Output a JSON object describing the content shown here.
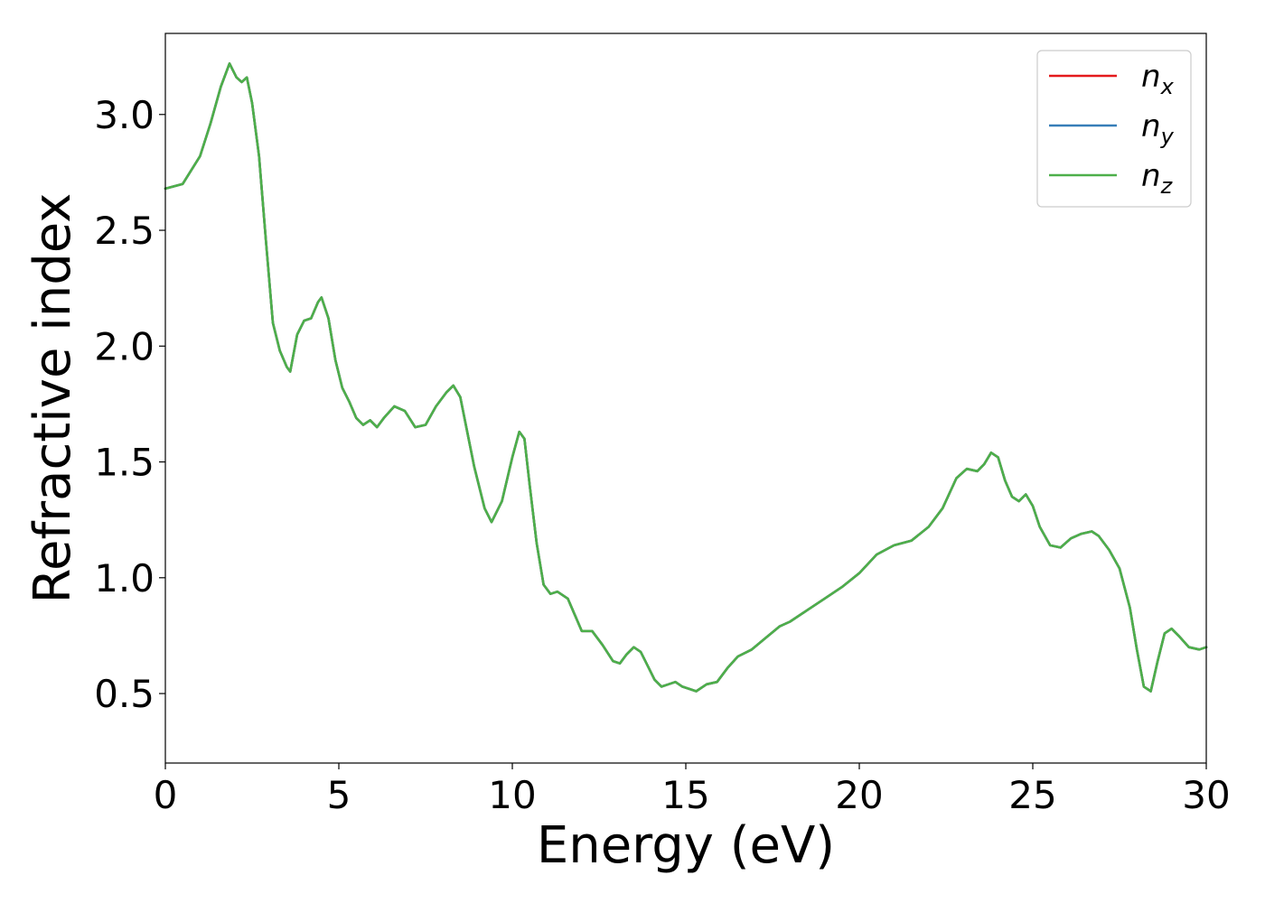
{
  "chart_data": {
    "type": "line",
    "title": "",
    "xlabel": "Energy (eV)",
    "ylabel": "Refractive index",
    "xlim": [
      0,
      30
    ],
    "ylim": [
      0.2,
      3.35
    ],
    "xticks": [
      "0",
      "5",
      "10",
      "15",
      "20",
      "25",
      "30"
    ],
    "yticks": [
      "0.5",
      "1.0",
      "1.5",
      "2.0",
      "2.5",
      "3.0"
    ],
    "grid": false,
    "legend_position": "top-right",
    "series": [
      {
        "name": "n",
        "subscript": "x",
        "color": "#e41a1c",
        "x": [
          0,
          0.5,
          1.0,
          1.3,
          1.6,
          1.85,
          2.05,
          2.2,
          2.35,
          2.5,
          2.7,
          2.9,
          3.1,
          3.3,
          3.5,
          3.6,
          3.8,
          4.0,
          4.2,
          4.4,
          4.5,
          4.7,
          4.9,
          5.1,
          5.3,
          5.5,
          5.7,
          5.9,
          6.1,
          6.3,
          6.6,
          6.9,
          7.2,
          7.5,
          7.8,
          8.1,
          8.3,
          8.5,
          8.7,
          8.9,
          9.2,
          9.4,
          9.7,
          10.0,
          10.2,
          10.35,
          10.5,
          10.7,
          10.9,
          11.1,
          11.3,
          11.6,
          11.8,
          12.0,
          12.3,
          12.6,
          12.9,
          13.1,
          13.3,
          13.5,
          13.7,
          13.9,
          14.1,
          14.3,
          14.5,
          14.7,
          14.9,
          15.1,
          15.3,
          15.6,
          15.9,
          16.2,
          16.5,
          16.9,
          17.3,
          17.7,
          18.0,
          18.5,
          19.0,
          19.5,
          20.0,
          20.5,
          21.0,
          21.5,
          22.0,
          22.4,
          22.8,
          23.1,
          23.4,
          23.6,
          23.8,
          24.0,
          24.2,
          24.4,
          24.6,
          24.8,
          25.0,
          25.2,
          25.5,
          25.8,
          26.1,
          26.4,
          26.7,
          26.9,
          27.2,
          27.5,
          27.8,
          28.0,
          28.2,
          28.4,
          28.6,
          28.8,
          29.0,
          29.2,
          29.5,
          29.8,
          30.0
        ],
        "y": [
          2.68,
          2.7,
          2.82,
          2.96,
          3.12,
          3.22,
          3.16,
          3.14,
          3.16,
          3.05,
          2.82,
          2.45,
          2.1,
          1.98,
          1.91,
          1.89,
          2.05,
          2.11,
          2.12,
          2.19,
          2.21,
          2.12,
          1.94,
          1.82,
          1.76,
          1.69,
          1.66,
          1.68,
          1.65,
          1.69,
          1.74,
          1.72,
          1.65,
          1.66,
          1.74,
          1.8,
          1.83,
          1.78,
          1.63,
          1.48,
          1.3,
          1.24,
          1.33,
          1.52,
          1.63,
          1.6,
          1.4,
          1.15,
          0.97,
          0.93,
          0.94,
          0.91,
          0.84,
          0.77,
          0.77,
          0.71,
          0.64,
          0.63,
          0.67,
          0.7,
          0.68,
          0.62,
          0.56,
          0.53,
          0.54,
          0.55,
          0.53,
          0.52,
          0.51,
          0.54,
          0.55,
          0.61,
          0.66,
          0.69,
          0.74,
          0.79,
          0.81,
          0.86,
          0.91,
          0.96,
          1.02,
          1.1,
          1.14,
          1.16,
          1.22,
          1.3,
          1.43,
          1.47,
          1.46,
          1.49,
          1.54,
          1.52,
          1.42,
          1.35,
          1.33,
          1.36,
          1.31,
          1.22,
          1.14,
          1.13,
          1.17,
          1.19,
          1.2,
          1.18,
          1.12,
          1.04,
          0.87,
          0.69,
          0.53,
          0.51,
          0.64,
          0.76,
          0.78,
          0.75,
          0.7,
          0.69,
          0.7
        ]
      },
      {
        "name": "n",
        "subscript": "y",
        "color": "#377eb8",
        "x": [
          0,
          0.5,
          1.0,
          1.3,
          1.6,
          1.85,
          2.05,
          2.2,
          2.35,
          2.5,
          2.7,
          2.9,
          3.1,
          3.3,
          3.5,
          3.6,
          3.8,
          4.0,
          4.2,
          4.4,
          4.5,
          4.7,
          4.9,
          5.1,
          5.3,
          5.5,
          5.7,
          5.9,
          6.1,
          6.3,
          6.6,
          6.9,
          7.2,
          7.5,
          7.8,
          8.1,
          8.3,
          8.5,
          8.7,
          8.9,
          9.2,
          9.4,
          9.7,
          10.0,
          10.2,
          10.35,
          10.5,
          10.7,
          10.9,
          11.1,
          11.3,
          11.6,
          11.8,
          12.0,
          12.3,
          12.6,
          12.9,
          13.1,
          13.3,
          13.5,
          13.7,
          13.9,
          14.1,
          14.3,
          14.5,
          14.7,
          14.9,
          15.1,
          15.3,
          15.6,
          15.9,
          16.2,
          16.5,
          16.9,
          17.3,
          17.7,
          18.0,
          18.5,
          19.0,
          19.5,
          20.0,
          20.5,
          21.0,
          21.5,
          22.0,
          22.4,
          22.8,
          23.1,
          23.4,
          23.6,
          23.8,
          24.0,
          24.2,
          24.4,
          24.6,
          24.8,
          25.0,
          25.2,
          25.5,
          25.8,
          26.1,
          26.4,
          26.7,
          26.9,
          27.2,
          27.5,
          27.8,
          28.0,
          28.2,
          28.4,
          28.6,
          28.8,
          29.0,
          29.2,
          29.5,
          29.8,
          30.0
        ],
        "y": [
          2.68,
          2.7,
          2.82,
          2.96,
          3.12,
          3.22,
          3.16,
          3.14,
          3.16,
          3.05,
          2.82,
          2.45,
          2.1,
          1.98,
          1.91,
          1.89,
          2.05,
          2.11,
          2.12,
          2.19,
          2.21,
          2.12,
          1.94,
          1.82,
          1.76,
          1.69,
          1.66,
          1.68,
          1.65,
          1.69,
          1.74,
          1.72,
          1.65,
          1.66,
          1.74,
          1.8,
          1.83,
          1.78,
          1.63,
          1.48,
          1.3,
          1.24,
          1.33,
          1.52,
          1.63,
          1.6,
          1.4,
          1.15,
          0.97,
          0.93,
          0.94,
          0.91,
          0.84,
          0.77,
          0.77,
          0.71,
          0.64,
          0.63,
          0.67,
          0.7,
          0.68,
          0.62,
          0.56,
          0.53,
          0.54,
          0.55,
          0.53,
          0.52,
          0.51,
          0.54,
          0.55,
          0.61,
          0.66,
          0.69,
          0.74,
          0.79,
          0.81,
          0.86,
          0.91,
          0.96,
          1.02,
          1.1,
          1.14,
          1.16,
          1.22,
          1.3,
          1.43,
          1.47,
          1.46,
          1.49,
          1.54,
          1.52,
          1.42,
          1.35,
          1.33,
          1.36,
          1.31,
          1.22,
          1.14,
          1.13,
          1.17,
          1.19,
          1.2,
          1.18,
          1.12,
          1.04,
          0.87,
          0.69,
          0.53,
          0.51,
          0.64,
          0.76,
          0.78,
          0.75,
          0.7,
          0.69,
          0.7
        ]
      },
      {
        "name": "n",
        "subscript": "z",
        "color": "#4daf4a",
        "x": [
          0,
          0.5,
          1.0,
          1.3,
          1.6,
          1.85,
          2.05,
          2.2,
          2.35,
          2.5,
          2.7,
          2.9,
          3.1,
          3.3,
          3.5,
          3.6,
          3.8,
          4.0,
          4.2,
          4.4,
          4.5,
          4.7,
          4.9,
          5.1,
          5.3,
          5.5,
          5.7,
          5.9,
          6.1,
          6.3,
          6.6,
          6.9,
          7.2,
          7.5,
          7.8,
          8.1,
          8.3,
          8.5,
          8.7,
          8.9,
          9.2,
          9.4,
          9.7,
          10.0,
          10.2,
          10.35,
          10.5,
          10.7,
          10.9,
          11.1,
          11.3,
          11.6,
          11.8,
          12.0,
          12.3,
          12.6,
          12.9,
          13.1,
          13.3,
          13.5,
          13.7,
          13.9,
          14.1,
          14.3,
          14.5,
          14.7,
          14.9,
          15.1,
          15.3,
          15.6,
          15.9,
          16.2,
          16.5,
          16.9,
          17.3,
          17.7,
          18.0,
          18.5,
          19.0,
          19.5,
          20.0,
          20.5,
          21.0,
          21.5,
          22.0,
          22.4,
          22.8,
          23.1,
          23.4,
          23.6,
          23.8,
          24.0,
          24.2,
          24.4,
          24.6,
          24.8,
          25.0,
          25.2,
          25.5,
          25.8,
          26.1,
          26.4,
          26.7,
          26.9,
          27.2,
          27.5,
          27.8,
          28.0,
          28.2,
          28.4,
          28.6,
          28.8,
          29.0,
          29.2,
          29.5,
          29.8,
          30.0
        ],
        "y": [
          2.68,
          2.7,
          2.82,
          2.96,
          3.12,
          3.22,
          3.16,
          3.14,
          3.16,
          3.05,
          2.82,
          2.45,
          2.1,
          1.98,
          1.91,
          1.89,
          2.05,
          2.11,
          2.12,
          2.19,
          2.21,
          2.12,
          1.94,
          1.82,
          1.76,
          1.69,
          1.66,
          1.68,
          1.65,
          1.69,
          1.74,
          1.72,
          1.65,
          1.66,
          1.74,
          1.8,
          1.83,
          1.78,
          1.63,
          1.48,
          1.3,
          1.24,
          1.33,
          1.52,
          1.63,
          1.6,
          1.4,
          1.15,
          0.97,
          0.93,
          0.94,
          0.91,
          0.84,
          0.77,
          0.77,
          0.71,
          0.64,
          0.63,
          0.67,
          0.7,
          0.68,
          0.62,
          0.56,
          0.53,
          0.54,
          0.55,
          0.53,
          0.52,
          0.51,
          0.54,
          0.55,
          0.61,
          0.66,
          0.69,
          0.74,
          0.79,
          0.81,
          0.86,
          0.91,
          0.96,
          1.02,
          1.1,
          1.14,
          1.16,
          1.22,
          1.3,
          1.43,
          1.47,
          1.46,
          1.49,
          1.54,
          1.52,
          1.42,
          1.35,
          1.33,
          1.36,
          1.31,
          1.22,
          1.14,
          1.13,
          1.17,
          1.19,
          1.2,
          1.18,
          1.12,
          1.04,
          0.87,
          0.69,
          0.53,
          0.51,
          0.64,
          0.76,
          0.78,
          0.75,
          0.7,
          0.69,
          0.7
        ]
      }
    ]
  }
}
